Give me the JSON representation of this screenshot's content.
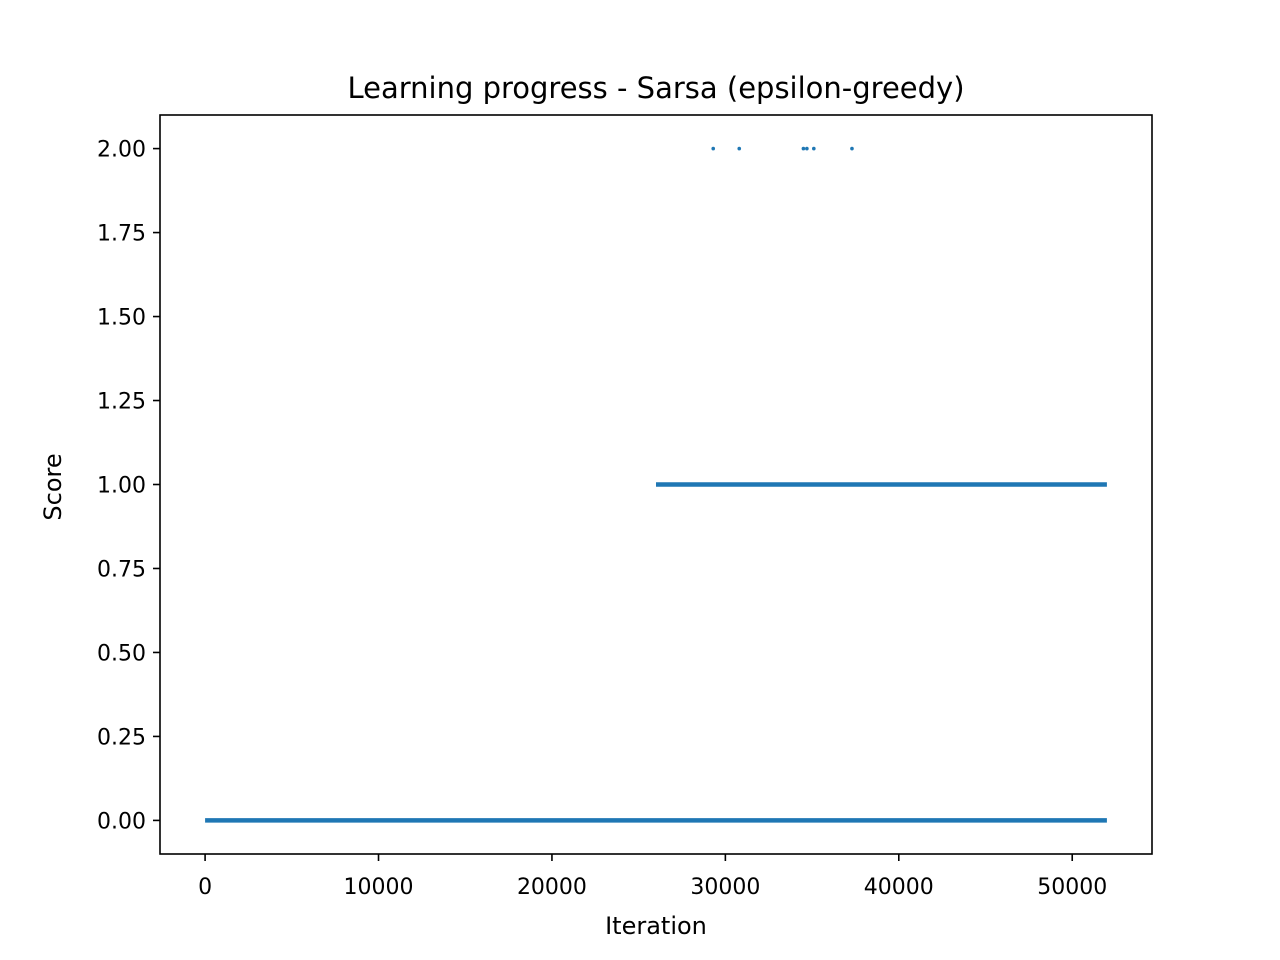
{
  "chart_data": {
    "type": "scatter",
    "title": "Learning progress - Sarsa (epsilon-greedy)",
    "xlabel": "Iteration",
    "ylabel": "Score",
    "xlim": [
      -2600,
      54600
    ],
    "ylim": [
      -0.1,
      2.1
    ],
    "xticks": [
      0,
      10000,
      20000,
      30000,
      40000,
      50000
    ],
    "xtick_labels": [
      "0",
      "10000",
      "20000",
      "30000",
      "40000",
      "50000"
    ],
    "yticks": [
      0,
      0.25,
      0.5,
      0.75,
      1.0,
      1.25,
      1.5,
      1.75,
      2.0
    ],
    "ytick_labels": [
      "0.00",
      "0.25",
      "0.50",
      "0.75",
      "1.00",
      "1.25",
      "1.50",
      "1.75",
      "2.00"
    ],
    "grid": false,
    "marker_color": "#1f77b4",
    "series": [
      {
        "points": [
          {
            "x_range": [
              0,
              52000
            ],
            "y": 0,
            "dense": true
          },
          {
            "x_range": [
              26000,
              52000
            ],
            "y": 1,
            "dense": true
          },
          {
            "x": 29300,
            "y": 2
          },
          {
            "x": 30800,
            "y": 2
          },
          {
            "x": 34500,
            "y": 2
          },
          {
            "x": 34700,
            "y": 2
          },
          {
            "x": 35100,
            "y": 2
          },
          {
            "x": 37300,
            "y": 2
          }
        ]
      }
    ]
  }
}
